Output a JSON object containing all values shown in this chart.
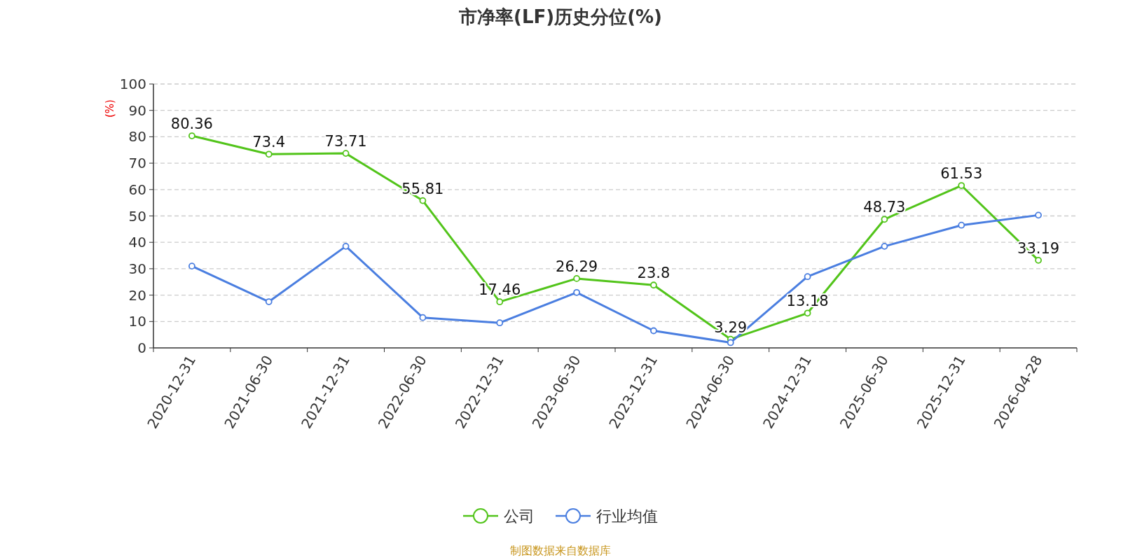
{
  "chart_data": {
    "type": "line",
    "title": "市净率(LF)历史分位(%)",
    "ylabel": "(%)",
    "categories": [
      "2020-12-31",
      "2021-06-30",
      "2021-12-31",
      "2022-06-30",
      "2022-12-31",
      "2023-06-30",
      "2023-12-31",
      "2024-06-30",
      "2024-12-31",
      "2025-06-30",
      "2025-12-31",
      "2026-04-28"
    ],
    "series": [
      {
        "name": "公司",
        "color": "#52c41a",
        "values": [
          80.36,
          73.4,
          73.71,
          55.81,
          17.46,
          26.29,
          23.8,
          3.29,
          13.18,
          48.73,
          61.53,
          33.19
        ],
        "value_labels": [
          "80.36",
          "73.4",
          "73.71",
          "55.81",
          "17.46",
          "26.29",
          "23.8",
          "3.29",
          "13.18",
          "48.73",
          "61.53",
          "33.19"
        ]
      },
      {
        "name": "行业均值",
        "color": "#4a7ee0",
        "values": [
          31,
          17.5,
          38.5,
          11.5,
          9.5,
          21,
          6.5,
          2,
          27,
          38.5,
          46.5,
          50.3
        ]
      }
    ],
    "ylim": [
      0,
      100
    ],
    "yticks": [
      0,
      10,
      20,
      30,
      40,
      50,
      60,
      70,
      80,
      90,
      100
    ],
    "grid": "y",
    "legend": "bottom",
    "marker": "circle",
    "line_style": "solid",
    "annotations": [
      "制图数据来自数据库"
    ]
  }
}
